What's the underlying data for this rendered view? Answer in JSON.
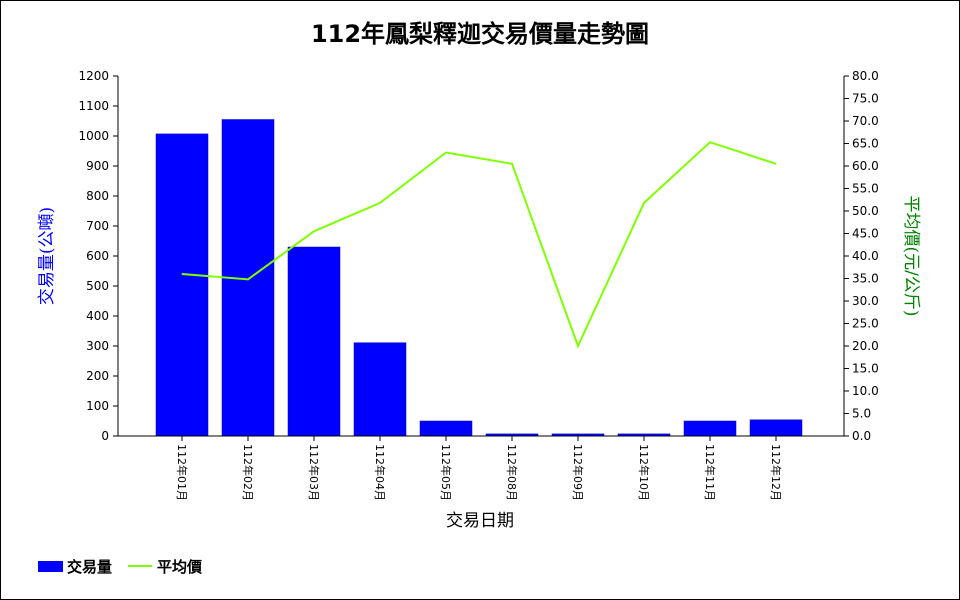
{
  "chart_data": {
    "type": "bar",
    "title": "112年鳳梨釋迦交易價量走勢圖",
    "xlabel": "交易日期",
    "ylabel": "交易量(公噸)",
    "ylabel_right": "平均價(元/公斤)",
    "categories": [
      "112年01月",
      "112年02月",
      "112年03月",
      "112年04月",
      "112年05月",
      "112年08月",
      "112年09月",
      "112年10月",
      "112年11月",
      "112年12月"
    ],
    "series": [
      {
        "name": "交易量",
        "type": "bar",
        "axis": "left",
        "color": "#0000ff",
        "values": [
          1007,
          1055,
          630,
          311,
          50,
          7,
          7,
          7,
          50,
          54
        ]
      },
      {
        "name": "平均價",
        "type": "line",
        "axis": "right",
        "color": "#80ff00",
        "values": [
          36.0,
          34.8,
          45.5,
          51.8,
          63.0,
          60.5,
          20.0,
          51.8,
          65.3,
          60.5
        ]
      }
    ],
    "ylim": [
      0,
      1200
    ],
    "yticks": [
      "0",
      "100",
      "200",
      "300",
      "400",
      "500",
      "600",
      "700",
      "800",
      "900",
      "1000",
      "1100",
      "1200"
    ],
    "ylim_right": [
      0,
      80
    ],
    "yticks_right": [
      "0.0",
      "5.0",
      "10.0",
      "15.0",
      "20.0",
      "25.0",
      "30.0",
      "35.0",
      "40.0",
      "45.0",
      "50.0",
      "55.0",
      "60.0",
      "65.0",
      "70.0",
      "75.0",
      "80.0"
    ],
    "legend_position": "bottom-left",
    "colors": {
      "ylabel": "#0000ff",
      "ylabel_right": "#008000"
    }
  }
}
